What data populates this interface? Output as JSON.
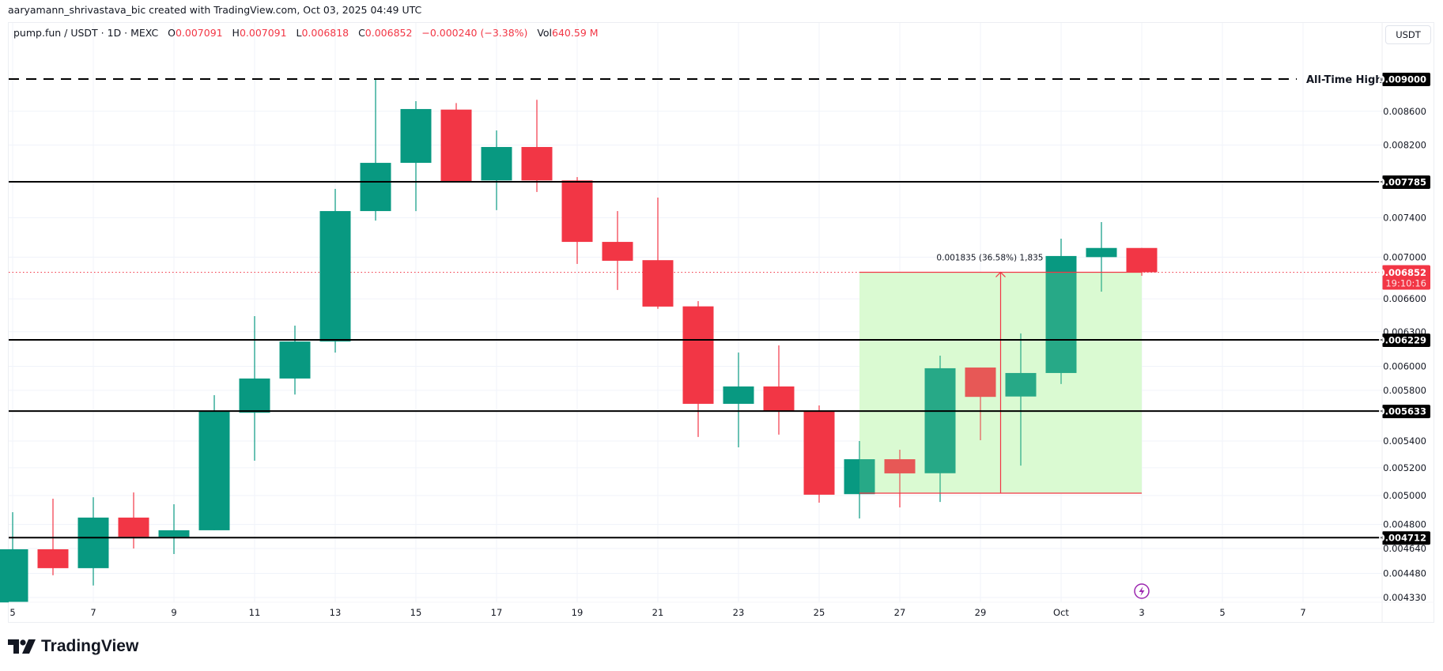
{
  "credit": "aaryamann_shrivastava_bic created with TradingView.com, Oct 03, 2025 04:49 UTC",
  "legend": {
    "symbol": "pump.fun / USDT · 1D · MEXC",
    "o_label": "O",
    "o": "0.007091",
    "h_label": "H",
    "h": "0.007091",
    "l_label": "L",
    "l": "0.006818",
    "c_label": "C",
    "c": "0.006852",
    "change": "−0.000240 (−3.38%)",
    "vol_label": "Vol",
    "vol": "640.59 M"
  },
  "currency_button": "USDT",
  "logo_text": "TradingView",
  "colors": {
    "up": "#089981",
    "down": "#f23645",
    "range_fill": "#e2fcdc",
    "level_line": "#000000",
    "grid": "#f0f3fa"
  },
  "chart_data": {
    "type": "candlestick",
    "y_scale": "log",
    "ylim": [
      0.00425,
      0.0093
    ],
    "grid": true,
    "candles": [
      {
        "date": "2025-09-05",
        "o": 0.0043,
        "h": 0.004884,
        "l": 0.0043,
        "c": 0.004635
      },
      {
        "date": "2025-09-06",
        "o": 0.004635,
        "h": 0.004978,
        "l": 0.004468,
        "c": 0.004513
      },
      {
        "date": "2025-09-07",
        "o": 0.004513,
        "h": 0.004988,
        "l": 0.004404,
        "c": 0.004847
      },
      {
        "date": "2025-09-08",
        "o": 0.004847,
        "h": 0.005022,
        "l": 0.00464,
        "c": 0.004717
      },
      {
        "date": "2025-09-09",
        "o": 0.004717,
        "h": 0.004939,
        "l": 0.004604,
        "c": 0.004761
      },
      {
        "date": "2025-09-10",
        "o": 0.004761,
        "h": 0.005761,
        "l": 0.004761,
        "c": 0.005633
      },
      {
        "date": "2025-09-11",
        "o": 0.00562,
        "h": 0.006441,
        "l": 0.005252,
        "c": 0.005898
      },
      {
        "date": "2025-09-12",
        "o": 0.005898,
        "h": 0.006355,
        "l": 0.005766,
        "c": 0.006214
      },
      {
        "date": "2025-09-13",
        "o": 0.006214,
        "h": 0.007707,
        "l": 0.006118,
        "c": 0.00747
      },
      {
        "date": "2025-09-14",
        "o": 0.00747,
        "h": 0.009,
        "l": 0.00737,
        "c": 0.007996
      },
      {
        "date": "2025-09-15",
        "o": 0.007996,
        "h": 0.008723,
        "l": 0.00747,
        "c": 0.008627
      },
      {
        "date": "2025-09-16",
        "o": 0.00862,
        "h": 0.0087,
        "l": 0.007794,
        "c": 0.007794
      },
      {
        "date": "2025-09-17",
        "o": 0.0078,
        "h": 0.00837,
        "l": 0.00748,
        "c": 0.008177
      },
      {
        "date": "2025-09-18",
        "o": 0.008177,
        "h": 0.00874,
        "l": 0.007674,
        "c": 0.0078
      },
      {
        "date": "2025-09-19",
        "o": 0.0078,
        "h": 0.007837,
        "l": 0.006933,
        "c": 0.007152
      },
      {
        "date": "2025-09-20",
        "o": 0.007152,
        "h": 0.00747,
        "l": 0.006683,
        "c": 0.006964
      },
      {
        "date": "2025-09-21",
        "o": 0.00697,
        "h": 0.007614,
        "l": 0.006507,
        "c": 0.006528
      },
      {
        "date": "2025-09-22",
        "o": 0.00653,
        "h": 0.006579,
        "l": 0.005431,
        "c": 0.005691
      },
      {
        "date": "2025-09-23",
        "o": 0.005691,
        "h": 0.006118,
        "l": 0.005352,
        "c": 0.005832
      },
      {
        "date": "2025-09-24",
        "o": 0.005832,
        "h": 0.00618,
        "l": 0.005449,
        "c": 0.005628
      },
      {
        "date": "2025-09-25",
        "o": 0.005633,
        "h": 0.005678,
        "l": 0.00495,
        "c": 0.005006
      },
      {
        "date": "2025-09-26",
        "o": 0.00501,
        "h": 0.0054,
        "l": 0.004841,
        "c": 0.005263
      },
      {
        "date": "2025-09-27",
        "o": 0.005263,
        "h": 0.005334,
        "l": 0.004917,
        "c": 0.005159
      },
      {
        "date": "2025-09-28",
        "o": 0.00516,
        "h": 0.006091,
        "l": 0.004955,
        "c": 0.005984
      },
      {
        "date": "2025-09-29",
        "o": 0.00599,
        "h": 0.00599,
        "l": 0.005406,
        "c": 0.005747
      },
      {
        "date": "2025-09-30",
        "o": 0.00575,
        "h": 0.006285,
        "l": 0.005216,
        "c": 0.005944
      },
      {
        "date": "2025-10-01",
        "o": 0.005944,
        "h": 0.007185,
        "l": 0.005852,
        "c": 0.007011
      },
      {
        "date": "2025-10-02",
        "o": 0.007,
        "h": 0.007355,
        "l": 0.006667,
        "c": 0.007091
      },
      {
        "date": "2025-10-03",
        "o": 0.007091,
        "h": 0.007091,
        "l": 0.006818,
        "c": 0.006852
      }
    ],
    "x_ticks": [
      {
        "date": "2025-09-05",
        "label": "5"
      },
      {
        "date": "2025-09-07",
        "label": "7"
      },
      {
        "date": "2025-09-09",
        "label": "9"
      },
      {
        "date": "2025-09-11",
        "label": "11"
      },
      {
        "date": "2025-09-13",
        "label": "13"
      },
      {
        "date": "2025-09-15",
        "label": "15"
      },
      {
        "date": "2025-09-17",
        "label": "17"
      },
      {
        "date": "2025-09-19",
        "label": "19"
      },
      {
        "date": "2025-09-21",
        "label": "21"
      },
      {
        "date": "2025-09-23",
        "label": "23"
      },
      {
        "date": "2025-09-25",
        "label": "25"
      },
      {
        "date": "2025-09-27",
        "label": "27"
      },
      {
        "date": "2025-09-29",
        "label": "29"
      },
      {
        "date": "2025-10-01",
        "label": "Oct"
      },
      {
        "date": "2025-10-03",
        "label": "3"
      },
      {
        "date": "2025-10-05",
        "label": "5"
      },
      {
        "date": "2025-10-07",
        "label": "7"
      }
    ],
    "y_ticks": [
      "0.008600",
      "0.008200",
      "0.007400",
      "0.007000",
      "0.006600",
      "0.006300",
      "0.006000",
      "0.005800",
      "0.005400",
      "0.005200",
      "0.005000",
      "0.004800",
      "0.004640",
      "0.004480",
      "0.004330"
    ],
    "levels": [
      {
        "price": "0.009000",
        "style": "dashed",
        "label": "All-Time High"
      },
      {
        "price": "0.007785",
        "style": "solid"
      },
      {
        "price": "0.006229",
        "style": "solid"
      },
      {
        "price": "0.005633",
        "style": "solid"
      },
      {
        "price": "0.004712",
        "style": "solid"
      }
    ],
    "last_price": {
      "price": "0.006852",
      "countdown": "19:10:16"
    },
    "price_range": {
      "from_date": "2025-09-26",
      "to_date": "2025-10-03",
      "low": 0.005017,
      "high": 0.006852,
      "label": "0.001835 (36.58%) 1,835"
    },
    "event_marker": {
      "date": "2025-10-03",
      "icon": "lightning-icon",
      "color": "#9c27b0"
    }
  }
}
